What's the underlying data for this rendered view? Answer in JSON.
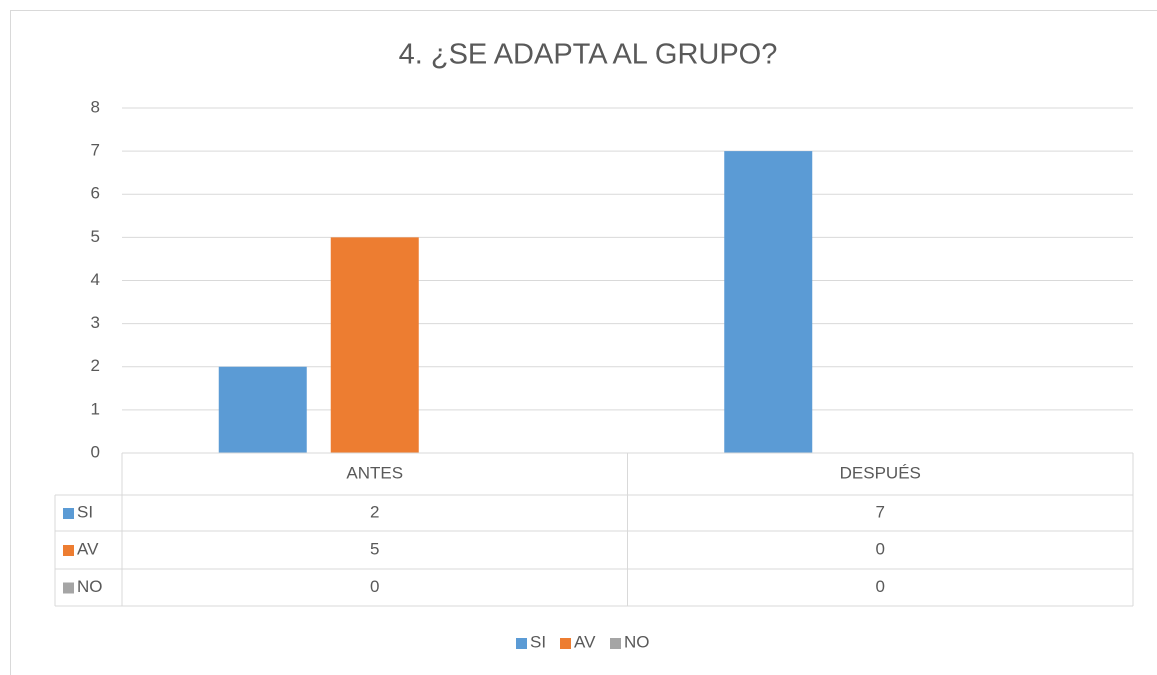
{
  "chart_data": {
    "type": "bar",
    "title": "4. ¿SE ADAPTA AL GRUPO?",
    "categories": [
      "ANTES",
      "DESPUÉS"
    ],
    "series": [
      {
        "name": "SI",
        "color": "#5b9bd5",
        "values": [
          2,
          7
        ]
      },
      {
        "name": "AV",
        "color": "#ed7d31",
        "values": [
          5,
          0
        ]
      },
      {
        "name": "NO",
        "color": "#a5a5a5",
        "values": [
          0,
          0
        ]
      }
    ],
    "ylim": [
      0,
      8
    ],
    "yticks": [
      0,
      1,
      2,
      3,
      4,
      5,
      6,
      7,
      8
    ],
    "grid": true,
    "data_table": true,
    "legend": "bottom"
  }
}
